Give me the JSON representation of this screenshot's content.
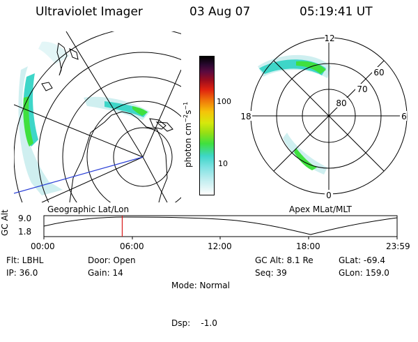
{
  "header": {
    "title": "Ultraviolet Imager",
    "date": "03 Aug 07",
    "time": "05:19:41 UT"
  },
  "left_panel": {
    "label": "Geographic Lat/Lon"
  },
  "right_panel": {
    "label": "Apex MLat/MLT",
    "mlt_labels": [
      "12",
      "6",
      "0",
      "18"
    ],
    "mlat_labels": [
      "60",
      "70",
      "80"
    ]
  },
  "colorbar": {
    "unit_label": "photon cm",
    "unit_exp1": "−2",
    "unit_mid": "s",
    "unit_exp2": "−1",
    "ticks": [
      "100",
      "10"
    ]
  },
  "altitude_plot": {
    "ylabel": "GC Alt",
    "yticks": [
      "9.0",
      "1.8"
    ],
    "xticks": [
      "00:00",
      "06:00",
      "12:00",
      "18:00",
      "23:59"
    ],
    "current_time_fraction": 0.2218
  },
  "info": {
    "col1": [
      "Flt: LBHL",
      "IP: 36.0"
    ],
    "col2": [
      "Door: Open",
      "Gain: 14"
    ],
    "col3": [
      "Mode: Normal",
      "Dsp:    -1.0"
    ],
    "col4": [
      "GC Alt: 8.1 Re",
      "Seq: 39"
    ],
    "col5": [
      "GLat: -69.4",
      "GLon: 159.0"
    ]
  },
  "colors": {
    "aurora_green": "#3fe03f",
    "aurora_cyan": "#3ed6c8",
    "aurora_pale": "#cfeff0",
    "track_blue": "#2a3fd6",
    "marker_red": "#d81818"
  }
}
